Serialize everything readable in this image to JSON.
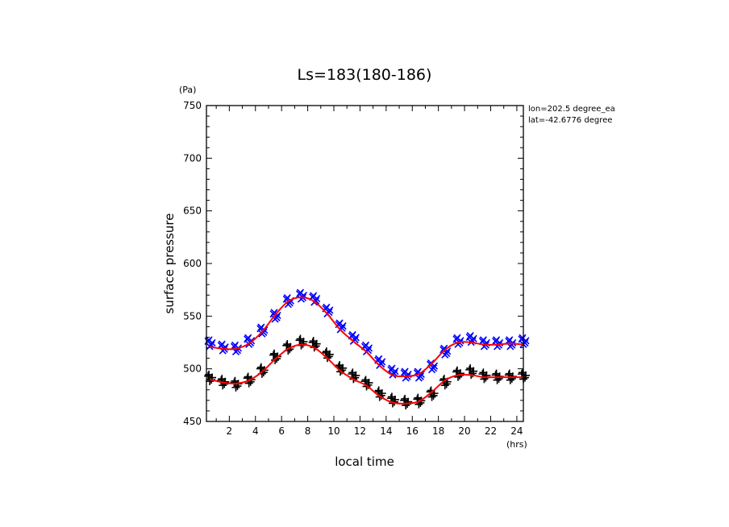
{
  "chart_data": {
    "type": "scatter",
    "title": "Ls=183(180-186)",
    "xlabel": "local time",
    "ylabel": "surface pressure",
    "x_unit": "(hrs)",
    "y_unit": "(Pa)",
    "annotations": [
      "lon=202.5 degree_ea",
      "lat=-42.6776 degree"
    ],
    "xlim": [
      0.25,
      24.5
    ],
    "ylim": [
      450,
      750
    ],
    "xticks": [
      "2",
      "4",
      "6",
      "8",
      "10",
      "12",
      "14",
      "16",
      "18",
      "20",
      "22",
      "24"
    ],
    "yticks": [
      "450",
      "500",
      "550",
      "600",
      "650",
      "700",
      "750"
    ],
    "x": [
      0.5,
      1.5,
      2.5,
      3.5,
      4.5,
      5.5,
      6.5,
      7.5,
      8.5,
      9.5,
      10.5,
      11.5,
      12.5,
      13.5,
      14.5,
      15.5,
      16.5,
      17.5,
      18.5,
      19.5,
      20.5,
      21.5,
      22.5,
      23.5,
      24.5
    ],
    "series": [
      {
        "marker": "x",
        "color": "#0000ff",
        "values": [
          524,
          520,
          519,
          526,
          536,
          550,
          564,
          569,
          566,
          555,
          540,
          529,
          519,
          506,
          497,
          494,
          494,
          502,
          516,
          526,
          528,
          524,
          524,
          524,
          526
        ]
      },
      {
        "marker": "+",
        "color": "#000000",
        "values": [
          491,
          487,
          485,
          489,
          498,
          511,
          520,
          525,
          523,
          513,
          500,
          493,
          486,
          476,
          470,
          468,
          469,
          476,
          487,
          495,
          497,
          493,
          492,
          492,
          493
        ]
      },
      {
        "marker": "line",
        "color": "#ff0000",
        "values": [
          521,
          519,
          519,
          524,
          535,
          551,
          564,
          568,
          564,
          552,
          537,
          526,
          516,
          503,
          494,
          493,
          495,
          505,
          518,
          525,
          525,
          523,
          523,
          524,
          523
        ]
      },
      {
        "marker": "line",
        "color": "#ff0000",
        "values": [
          490,
          487,
          486,
          489,
          497,
          509,
          519,
          523,
          520,
          510,
          498,
          490,
          484,
          474,
          468,
          467,
          469,
          478,
          489,
          494,
          494,
          492,
          492,
          492,
          492
        ]
      }
    ]
  }
}
